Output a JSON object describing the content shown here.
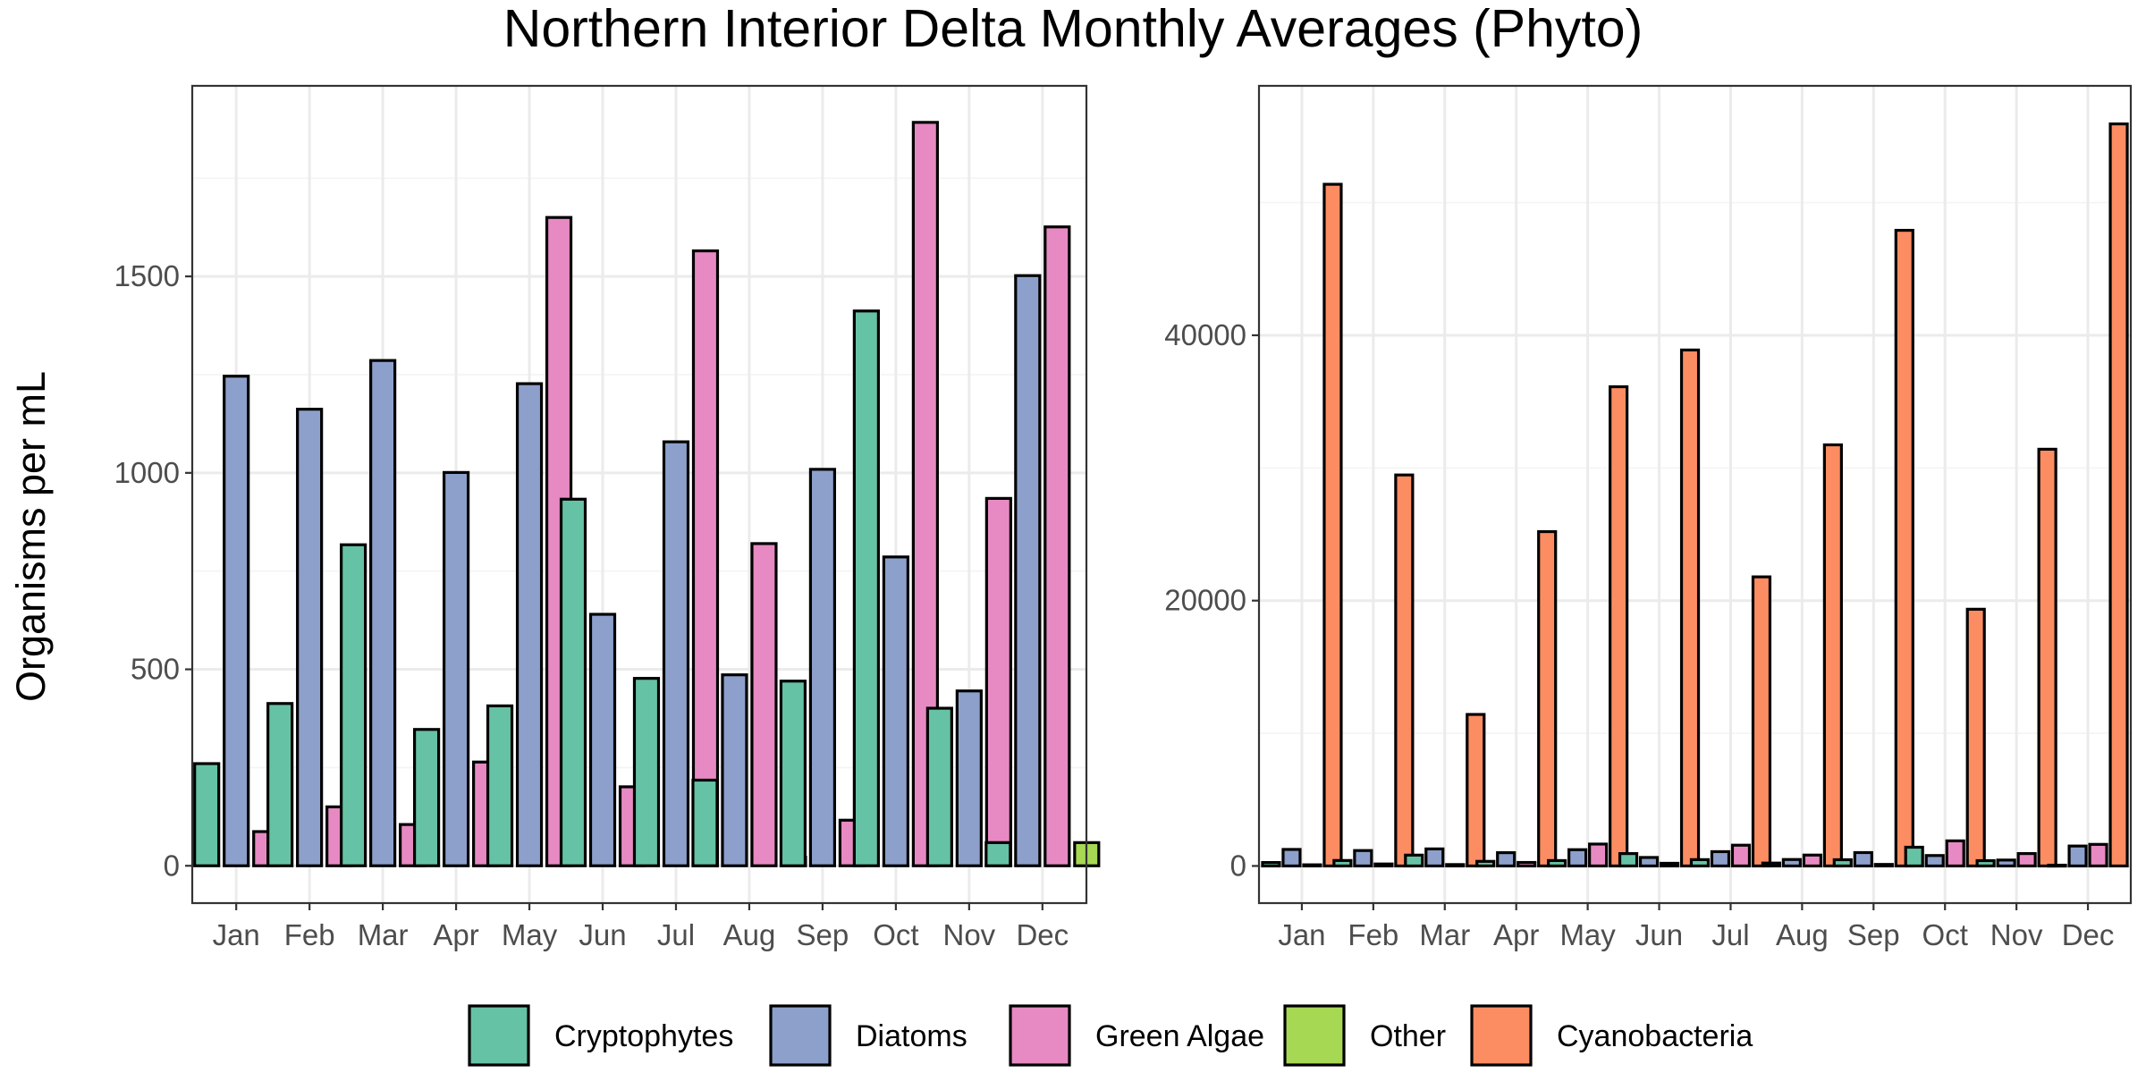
{
  "title": "Northern Interior Delta Monthly Averages (Phyto)",
  "ylabel": "Organisms per mL",
  "colors": {
    "Cryptophytes": "#66c2a5",
    "Diatoms": "#8da0cb",
    "Green Algae": "#e78ac3",
    "Other": "#a6d854",
    "Cyanobacteria": "#fc8d62",
    "bar_outline": "#000000",
    "grid_major": "#ebebeb",
    "grid_minor": "#f4f4f4",
    "panel_border": "#333333",
    "tick_text": "#4d4d4d"
  },
  "legend": {
    "position": "bottom",
    "items": [
      "Cryptophytes",
      "Diatoms",
      "Green Algae",
      "Other",
      "Cyanobacteria"
    ]
  },
  "chart_data": [
    {
      "type": "bar",
      "panel": "left",
      "categories": [
        "Jan",
        "Feb",
        "Mar",
        "Apr",
        "May",
        "Jun",
        "Jul",
        "Aug",
        "Sep",
        "Oct",
        "Nov",
        "Dec"
      ],
      "ylim": [
        -95,
        1985
      ],
      "yticks": [
        0,
        500,
        1000,
        1500
      ],
      "grid": true,
      "series": [
        {
          "name": "Cryptophytes",
          "values": [
            260,
            413,
            817,
            347,
            407,
            933,
            477,
            218,
            470,
            1412,
            401,
            59
          ]
        },
        {
          "name": "Diatoms",
          "values": [
            1246,
            1162,
            1286,
            1001,
            1227,
            640,
            1079,
            486,
            1009,
            786,
            445,
            1502
          ]
        },
        {
          "name": "Green Algae",
          "values": [
            87,
            150,
            105,
            264,
            null,
            201,
            null,
            820,
            116,
            null,
            935,
            null
          ]
        },
        {
          "name": "Other",
          "values": [
            null,
            null,
            null,
            null,
            null,
            null,
            null,
            22,
            null,
            null,
            null,
            59
          ]
        },
        {
          "name": "Green Algae (tall)",
          "values": [
            null,
            null,
            null,
            null,
            1650,
            null,
            1565,
            null,
            null,
            1892,
            null,
            1626
          ]
        }
      ],
      "groups": [
        {
          "category": "Jan",
          "bars": [
            [
              "Cryptophytes",
              260
            ],
            [
              "Diatoms",
              1246
            ],
            [
              "Green Algae",
              87
            ]
          ]
        },
        {
          "category": "Feb",
          "bars": [
            [
              "Cryptophytes",
              413
            ],
            [
              "Diatoms",
              1162
            ],
            [
              "Green Algae",
              150
            ]
          ]
        },
        {
          "category": "Mar",
          "bars": [
            [
              "Cryptophytes",
              817
            ],
            [
              "Diatoms",
              1286
            ],
            [
              "Green Algae",
              105
            ]
          ]
        },
        {
          "category": "Apr",
          "bars": [
            [
              "Cryptophytes",
              347
            ],
            [
              "Diatoms",
              1001
            ],
            [
              "Green Algae",
              264
            ]
          ]
        },
        {
          "category": "May",
          "bars": [
            [
              "Cryptophytes",
              407
            ],
            [
              "Diatoms",
              1227
            ],
            [
              "Green Algae",
              1650
            ]
          ]
        },
        {
          "category": "Jun",
          "bars": [
            [
              "Cryptophytes",
              933
            ],
            [
              "Diatoms",
              640
            ],
            [
              "Green Algae",
              201
            ]
          ]
        },
        {
          "category": "Jul",
          "bars": [
            [
              "Cryptophytes",
              477
            ],
            [
              "Diatoms",
              1079
            ],
            [
              "Green Algae",
              1565
            ]
          ]
        },
        {
          "category": "Aug",
          "bars": [
            [
              "Cryptophytes",
              218
            ],
            [
              "Diatoms",
              486
            ],
            [
              "Green Algae",
              820
            ],
            [
              "Other",
              22
            ]
          ]
        },
        {
          "category": "Sep",
          "bars": [
            [
              "Cryptophytes",
              470
            ],
            [
              "Diatoms",
              1009
            ],
            [
              "Green Algae",
              116
            ]
          ]
        },
        {
          "category": "Oct",
          "bars": [
            [
              "Cryptophytes",
              1412
            ],
            [
              "Diatoms",
              786
            ],
            [
              "Green Algae",
              1892
            ]
          ]
        },
        {
          "category": "Nov",
          "bars": [
            [
              "Cryptophytes",
              401
            ],
            [
              "Diatoms",
              445
            ],
            [
              "Green Algae",
              935
            ]
          ]
        },
        {
          "category": "Dec",
          "bars": [
            [
              "Cryptophytes",
              59
            ],
            [
              "Diatoms",
              1502
            ],
            [
              "Green Algae",
              1626
            ],
            [
              "Other",
              59
            ]
          ]
        }
      ]
    },
    {
      "type": "bar",
      "panel": "right",
      "categories": [
        "Jan",
        "Feb",
        "Mar",
        "Apr",
        "May",
        "Jun",
        "Jul",
        "Aug",
        "Sep",
        "Oct",
        "Nov",
        "Dec"
      ],
      "ylim": [
        -2800,
        58800
      ],
      "yticks": [
        0,
        20000,
        40000
      ],
      "grid": true,
      "groups": [
        {
          "category": "Jan",
          "bars": [
            [
              "Cryptophytes",
              260
            ],
            [
              "Diatoms",
              1246
            ],
            [
              "Green Algae",
              87
            ],
            [
              "Cyanobacteria",
              51380
            ]
          ]
        },
        {
          "category": "Feb",
          "bars": [
            [
              "Cryptophytes",
              413
            ],
            [
              "Diatoms",
              1162
            ],
            [
              "Green Algae",
              150
            ],
            [
              "Cyanobacteria",
              29470
            ]
          ]
        },
        {
          "category": "Mar",
          "bars": [
            [
              "Cryptophytes",
              817
            ],
            [
              "Diatoms",
              1286
            ],
            [
              "Green Algae",
              105
            ],
            [
              "Cyanobacteria",
              11420
            ]
          ]
        },
        {
          "category": "Apr",
          "bars": [
            [
              "Cryptophytes",
              347
            ],
            [
              "Diatoms",
              1001
            ],
            [
              "Green Algae",
              264
            ],
            [
              "Cyanobacteria",
              25200
            ]
          ]
        },
        {
          "category": "May",
          "bars": [
            [
              "Cryptophytes",
              407
            ],
            [
              "Diatoms",
              1227
            ],
            [
              "Green Algae",
              1650
            ],
            [
              "Cyanobacteria",
              36120
            ]
          ]
        },
        {
          "category": "Jun",
          "bars": [
            [
              "Cryptophytes",
              933
            ],
            [
              "Diatoms",
              640
            ],
            [
              "Green Algae",
              201
            ],
            [
              "Cyanobacteria",
              38890
            ]
          ]
        },
        {
          "category": "Jul",
          "bars": [
            [
              "Cryptophytes",
              477
            ],
            [
              "Diatoms",
              1079
            ],
            [
              "Green Algae",
              1565
            ],
            [
              "Cyanobacteria",
              21790
            ]
          ]
        },
        {
          "category": "Aug",
          "bars": [
            [
              "Cryptophytes",
              218
            ],
            [
              "Diatoms",
              486
            ],
            [
              "Green Algae",
              820
            ],
            [
              "Cyanobacteria",
              31740
            ]
          ]
        },
        {
          "category": "Sep",
          "bars": [
            [
              "Cryptophytes",
              470
            ],
            [
              "Diatoms",
              1009
            ],
            [
              "Green Algae",
              116
            ],
            [
              "Cyanobacteria",
              47910
            ]
          ]
        },
        {
          "category": "Oct",
          "bars": [
            [
              "Cryptophytes",
              1412
            ],
            [
              "Diatoms",
              786
            ],
            [
              "Green Algae",
              1892
            ],
            [
              "Cyanobacteria",
              19350
            ]
          ]
        },
        {
          "category": "Nov",
          "bars": [
            [
              "Cryptophytes",
              401
            ],
            [
              "Diatoms",
              445
            ],
            [
              "Green Algae",
              935
            ],
            [
              "Cyanobacteria",
              31410
            ]
          ]
        },
        {
          "category": "Dec",
          "bars": [
            [
              "Cryptophytes",
              59
            ],
            [
              "Diatoms",
              1502
            ],
            [
              "Green Algae",
              1626
            ],
            [
              "Cyanobacteria",
              55930
            ]
          ]
        }
      ]
    }
  ]
}
